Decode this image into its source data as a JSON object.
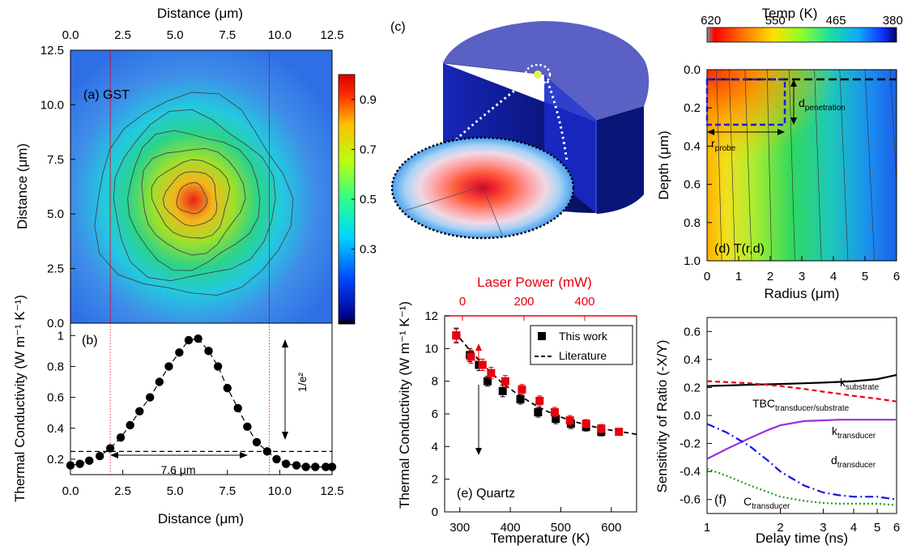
{
  "chart_data": [
    {
      "id": "a",
      "type": "heatmap",
      "panel_label": "(a) GST",
      "xlabel": "Distance (μm)",
      "ylabel": "Distance (μm)",
      "xlim": [
        0,
        12.5
      ],
      "ylim": [
        0,
        12.5
      ],
      "xticks": [
        "0.0",
        "2.5",
        "5.0",
        "7.5",
        "10.0",
        "12.5"
      ],
      "yticks": [
        "0.0",
        "2.5",
        "5.0",
        "7.5",
        "10.0",
        "12.5"
      ],
      "colorbar_ticks": [
        "0.3",
        "0.5",
        "0.7",
        "0.9"
      ],
      "peak_center": [
        5.8,
        5.7
      ],
      "contour_levels": [
        0.3,
        0.4,
        0.5,
        0.6,
        0.7,
        0.8,
        0.9
      ],
      "guide_lines_x": [
        1.9,
        9.5
      ]
    },
    {
      "id": "b",
      "type": "scatter",
      "panel_label": "(b)",
      "xlabel": "Distance (μm)",
      "ylabel": "Thermal Conductivity (W m⁻¹ K⁻¹)",
      "xlim": [
        0,
        12.5
      ],
      "ylim": [
        0.1,
        1.08
      ],
      "xticks": [
        "0.0",
        "2.5",
        "5.0",
        "7.5",
        "10.0",
        "12.5"
      ],
      "yticks": [
        "0.2",
        "0.4",
        "0.6",
        "0.8",
        "1"
      ],
      "x": [
        0.0,
        0.45,
        0.9,
        1.4,
        1.9,
        2.4,
        2.85,
        3.3,
        3.8,
        4.25,
        4.7,
        5.2,
        5.65,
        6.1,
        6.6,
        7.05,
        7.5,
        8.0,
        8.45,
        8.9,
        9.4,
        9.85,
        10.3,
        10.8,
        11.25,
        11.7,
        12.2,
        12.5
      ],
      "y": [
        0.16,
        0.17,
        0.19,
        0.22,
        0.27,
        0.34,
        0.42,
        0.51,
        0.6,
        0.7,
        0.8,
        0.89,
        0.97,
        0.98,
        0.9,
        0.8,
        0.66,
        0.53,
        0.41,
        0.31,
        0.25,
        0.2,
        0.17,
        0.16,
        0.15,
        0.15,
        0.15,
        0.15
      ],
      "threshold_y": 0.25,
      "annotations": {
        "width": "7.6 μm",
        "level": "1/e²"
      }
    },
    {
      "id": "c",
      "type": "other",
      "panel_label": "(c)",
      "description_free": true
    },
    {
      "id": "d",
      "type": "heatmap",
      "panel_label": "(d) T(r,d)",
      "xlabel": "Radius (μm)",
      "ylabel": "Depth (μm)",
      "xlim": [
        0,
        6
      ],
      "ylim": [
        0,
        1
      ],
      "xticks": [
        "0",
        "1",
        "2",
        "3",
        "4",
        "5",
        "6"
      ],
      "yticks": [
        "0.0",
        "0.2",
        "0.4",
        "0.6",
        "0.8",
        "1.0"
      ],
      "colorbar_title": "Temp (K)",
      "colorbar_ticks": [
        "620",
        "550",
        "465",
        "380"
      ],
      "annotations": {
        "r": "r",
        "r_sub": "probe",
        "d": "d",
        "d_sub": "penetration"
      }
    },
    {
      "id": "e",
      "type": "scatter",
      "panel_label": "(e) Quartz",
      "xlabel": "Temperature (K)",
      "ylabel": "Thermal Conductivity (W m⁻¹ K⁻¹)",
      "top_xlabel": "Laser Power (mW)",
      "top_xlabel_color": "#e8000b",
      "xlim": [
        270,
        650
      ],
      "ylim": [
        0,
        12
      ],
      "xticks": [
        "300",
        "400",
        "500",
        "600"
      ],
      "yticks": [
        "0",
        "2",
        "4",
        "6",
        "8",
        "10",
        "12"
      ],
      "top_xticks": [
        "0",
        "200",
        "400"
      ],
      "legend": [
        "This work",
        "Literature"
      ],
      "legend_position": "top-right",
      "series": [
        {
          "name": "This work",
          "color": "#000000",
          "marker": "square",
          "x": [
            293,
            320,
            338,
            355,
            385,
            420,
            455,
            490,
            520,
            550,
            580
          ],
          "y": [
            10.8,
            9.6,
            9.0,
            8.0,
            7.4,
            6.9,
            6.1,
            5.7,
            5.4,
            5.2,
            4.9
          ],
          "err": [
            0.45,
            0.4,
            0.35,
            0.3,
            0.35,
            0.3,
            0.3,
            0.3,
            0.3,
            0.25,
            0.25
          ]
        },
        {
          "name": "red",
          "color": "#e8000b",
          "marker": "square",
          "x": [
            293,
            322,
            345,
            362,
            390,
            423,
            458,
            488,
            518,
            550,
            580,
            615
          ],
          "y": [
            10.8,
            9.5,
            9.0,
            8.5,
            8.0,
            7.5,
            6.8,
            6.1,
            5.6,
            5.4,
            5.1,
            4.9
          ],
          "err": [
            0.4,
            0.4,
            0.35,
            0.35,
            0.35,
            0.3,
            0.3,
            0.3,
            0.3,
            0.25,
            0.25,
            0.2
          ]
        },
        {
          "name": "Literature",
          "color": "#000000",
          "style": "dashed",
          "x": [
            290,
            320,
            350,
            380,
            410,
            440,
            470,
            500,
            530,
            560,
            590,
            620,
            650
          ],
          "y": [
            11.0,
            9.9,
            8.9,
            8.0,
            7.3,
            6.7,
            6.2,
            5.8,
            5.5,
            5.25,
            5.05,
            4.9,
            4.75
          ]
        }
      ]
    },
    {
      "id": "f",
      "type": "line",
      "panel_label": "(f)",
      "xlabel": "Delay time (ns)",
      "ylabel": "Sensitivity of Ratio (-X/Y)",
      "xscale": "log",
      "xlim": [
        1,
        6
      ],
      "ylim": [
        -0.7,
        0.7
      ],
      "xticks": [
        "1",
        "2",
        "3",
        "4",
        "5",
        "6"
      ],
      "yticks": [
        "-0.6",
        "-0.4",
        "-0.2",
        "0.0",
        "0.2",
        "0.4",
        "0.6"
      ],
      "series": [
        {
          "name": "k",
          "sub": "substrate",
          "color": "#000000",
          "style": "solid",
          "x": [
            1,
            1.5,
            2,
            2.5,
            3,
            3.5,
            4,
            5,
            6
          ],
          "y": [
            0.21,
            0.22,
            0.225,
            0.23,
            0.235,
            0.24,
            0.245,
            0.26,
            0.29
          ]
        },
        {
          "name": "TBC",
          "sub": "transducer/substrate",
          "color": "#e8000b",
          "style": "dashed",
          "x": [
            1,
            1.5,
            2,
            2.5,
            3,
            3.5,
            4,
            5,
            6
          ],
          "y": [
            0.245,
            0.23,
            0.21,
            0.19,
            0.17,
            0.155,
            0.14,
            0.12,
            0.1
          ]
        },
        {
          "name": "k",
          "sub": "transducer",
          "color": "#9b30e0",
          "style": "solid",
          "x": [
            1,
            1.2,
            1.5,
            1.8,
            2,
            2.5,
            3,
            3.5,
            4,
            5,
            6
          ],
          "y": [
            -0.31,
            -0.24,
            -0.16,
            -0.1,
            -0.07,
            -0.04,
            -0.035,
            -0.03,
            -0.03,
            -0.03,
            -0.03
          ]
        },
        {
          "name": "d",
          "sub": "transducer",
          "color": "#1515e0",
          "style": "dashdot",
          "x": [
            1,
            1.2,
            1.5,
            1.8,
            2,
            2.5,
            3,
            3.5,
            4,
            5,
            6
          ],
          "y": [
            -0.06,
            -0.12,
            -0.22,
            -0.33,
            -0.4,
            -0.5,
            -0.55,
            -0.57,
            -0.58,
            -0.58,
            -0.6
          ]
        },
        {
          "name": "C",
          "sub": "transducer",
          "color": "#1e9b1e",
          "style": "dotted",
          "x": [
            1,
            1.2,
            1.5,
            1.8,
            2,
            2.5,
            3,
            3.5,
            4,
            5,
            6
          ],
          "y": [
            -0.38,
            -0.43,
            -0.5,
            -0.55,
            -0.58,
            -0.61,
            -0.625,
            -0.63,
            -0.63,
            -0.63,
            -0.64
          ]
        }
      ]
    }
  ]
}
